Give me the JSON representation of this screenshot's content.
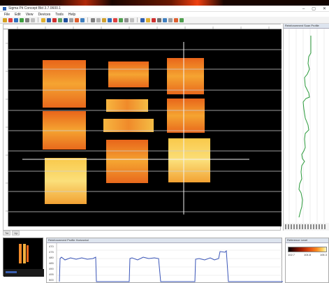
{
  "window": {
    "title": "Sigma Pit Concept Bld 3.7.0600.1",
    "controls": [
      "–",
      "▢",
      "✕"
    ]
  },
  "menu": [
    "File",
    "Edit",
    "View",
    "Devices",
    "Tools",
    "Help"
  ],
  "toolbar": {
    "button_colors": [
      "#d4a020",
      "#e04040",
      "#3070c0",
      "#40a040",
      "#808080",
      "#c0c0c0",
      "#e0b030",
      "#3060b0",
      "#d03030",
      "#60a060",
      "#2050a0",
      "#a0a0a0",
      "#e06030",
      "#4080c0",
      "#808080",
      "#b0b0b0",
      "#d0a030",
      "#3070c0",
      "#e04040",
      "#50a050",
      "#909090",
      "#c0c0c0",
      "#3060b0",
      "#e0b030",
      "#d03030",
      "#707070",
      "#4080c0",
      "#a0a0a0",
      "#e06030",
      "#50a050"
    ]
  },
  "status": {
    "left_a": "Tot",
    "left_b": "Up"
  },
  "side_panel": {
    "title": "Reinforcement Scan Profile"
  },
  "bottom_panel": {
    "title": "Reinforcement Profile Horizontal",
    "y_labels": [
      "470",
      "475",
      "480",
      "485",
      "490",
      "495",
      "500"
    ]
  },
  "legend": {
    "title": "Reference Level",
    "ticks": [
      "102.7",
      "104.8",
      "106.3"
    ]
  },
  "colors": {
    "scan_background": "#000000",
    "profile_line": "#3a55b8",
    "side_profile_line": "#2a9a3a",
    "grid_line": "#d9d9d9"
  }
}
